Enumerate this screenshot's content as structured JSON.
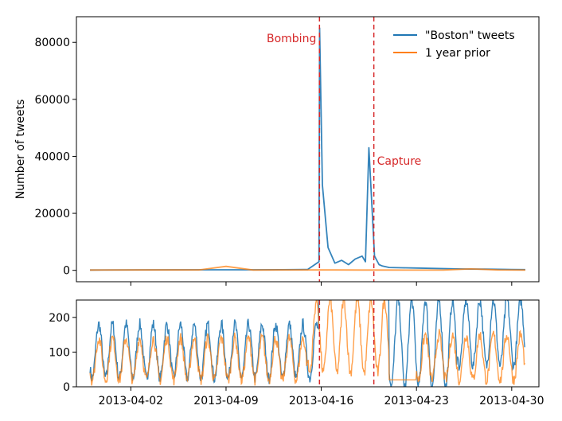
{
  "chart_data": [
    {
      "type": "line",
      "panel": "main",
      "ylabel": "Number of tweets",
      "ylim": [
        -4000,
        89000
      ],
      "yticks": [
        0,
        20000,
        40000,
        60000,
        80000
      ],
      "xlim": [
        "2013-03-29",
        "2013-05-02"
      ],
      "xticks_labels_hidden": true,
      "grid": false,
      "legend": {
        "placement": "top-right"
      },
      "series": [
        {
          "name": "\"Boston\" tweets",
          "color": "#1f77b4",
          "x": [
            "2013-03-30",
            "2013-04-03",
            "2013-04-07",
            "2013-04-11",
            "2013-04-13",
            "2013-04-15",
            "2013-04-15T20:00",
            "2013-04-15T21:00",
            "2013-04-16T02:00",
            "2013-04-16T12:00",
            "2013-04-17",
            "2013-04-17T12:00",
            "2013-04-18",
            "2013-04-18T12:00",
            "2013-04-19",
            "2013-04-19T06:00",
            "2013-04-19T12:00",
            "2013-04-19T22:00",
            "2013-04-20T06:00",
            "2013-04-20T12:00",
            "2013-04-21",
            "2013-04-22",
            "2013-04-23",
            "2013-04-24",
            "2013-04-25",
            "2013-04-26",
            "2013-04-27",
            "2013-04-28",
            "2013-04-29",
            "2013-04-30",
            "2013-05-01"
          ],
          "y": [
            100,
            150,
            180,
            200,
            220,
            300,
            3000,
            85000,
            30000,
            8000,
            2500,
            3500,
            2000,
            4000,
            5000,
            3000,
            43000,
            5000,
            2000,
            1500,
            1000,
            900,
            800,
            700,
            600,
            500,
            450,
            400,
            350,
            300,
            250
          ]
        },
        {
          "name": "1 year prior",
          "color": "#ff7f0e",
          "x": [
            "2013-03-30",
            "2013-04-03",
            "2013-04-07",
            "2013-04-09",
            "2013-04-11",
            "2013-04-13",
            "2013-04-15",
            "2013-04-17",
            "2013-04-19",
            "2013-04-21",
            "2013-04-23",
            "2013-04-25",
            "2013-04-27",
            "2013-04-29",
            "2013-05-01"
          ],
          "y": [
            100,
            120,
            130,
            1400,
            110,
            120,
            130,
            120,
            110,
            100,
            90,
            110,
            500,
            120,
            100
          ]
        }
      ],
      "annotations": [
        {
          "text": "Bombing",
          "x": "2013-04-15T20:50",
          "color": "#d62728"
        },
        {
          "text": "Capture",
          "x": "2013-04-19T20:45",
          "color": "#d62728"
        }
      ]
    },
    {
      "type": "line",
      "panel": "zoom",
      "ylim": [
        0,
        250
      ],
      "yticks": [
        0,
        100,
        200
      ],
      "xlim": [
        "2013-03-29",
        "2013-05-02"
      ],
      "xticks": [
        "2013-04-02",
        "2013-04-09",
        "2013-04-16",
        "2013-04-23",
        "2013-04-30"
      ],
      "grid": false,
      "series": [
        {
          "name": "\"Boston\" tweets",
          "color": "#1f77b4",
          "daily_cycle": [
            {
              "start": "2013-03-30",
              "end": "2013-04-15T20:00",
              "low": 25,
              "high": 180
            },
            {
              "start": "2013-04-15T20:00",
              "end": "2013-04-21",
              "low": 250,
              "high": 250
            },
            {
              "start": "2013-04-21",
              "end": "2013-04-26",
              "low": 0,
              "high": 250
            },
            {
              "start": "2013-04-26",
              "end": "2013-05-01",
              "low": 60,
              "high": 250
            }
          ]
        },
        {
          "name": "1 year prior",
          "color": "#ff7f0e",
          "daily_cycle": [
            {
              "start": "2013-03-30",
              "end": "2013-04-15",
              "low": 20,
              "high": 140
            },
            {
              "start": "2013-04-15",
              "end": "2013-04-21",
              "low": 40,
              "high": 250
            },
            {
              "start": "2013-04-21",
              "end": "2013-04-23",
              "low": 0,
              "high": 0
            },
            {
              "start": "2013-04-23",
              "end": "2013-05-01",
              "low": 20,
              "high": 150
            }
          ]
        }
      ],
      "annotations": [
        {
          "x": "2013-04-15T20:50",
          "color": "#d62728"
        },
        {
          "x": "2013-04-19T20:45",
          "color": "#d62728"
        }
      ]
    }
  ]
}
